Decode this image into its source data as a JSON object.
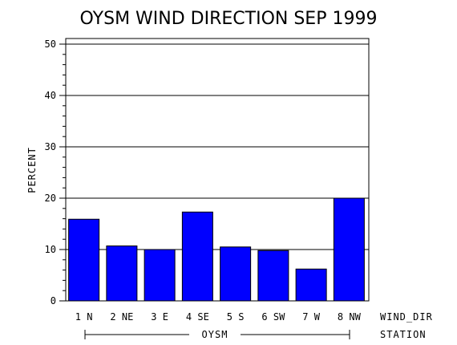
{
  "chart_data": {
    "type": "bar",
    "title": "OYSM WIND DIRECTION SEP 1999",
    "ylabel": "PERCENT",
    "xlabel": "WIND_DIR",
    "group_axis_label": "STATION",
    "group_label": "OYSM",
    "categories": [
      "1 N",
      "2 NE",
      "3 E",
      "4 SE",
      "5 S",
      "6 SW",
      "7 W",
      "8 NW"
    ],
    "values": [
      15.9,
      10.7,
      10.0,
      17.3,
      10.5,
      9.8,
      6.2,
      20.0
    ],
    "ylim": [
      0,
      50
    ],
    "yticks": [
      0,
      10,
      20,
      30,
      40,
      50
    ],
    "grid": true,
    "bar_color": "#0000ff"
  }
}
